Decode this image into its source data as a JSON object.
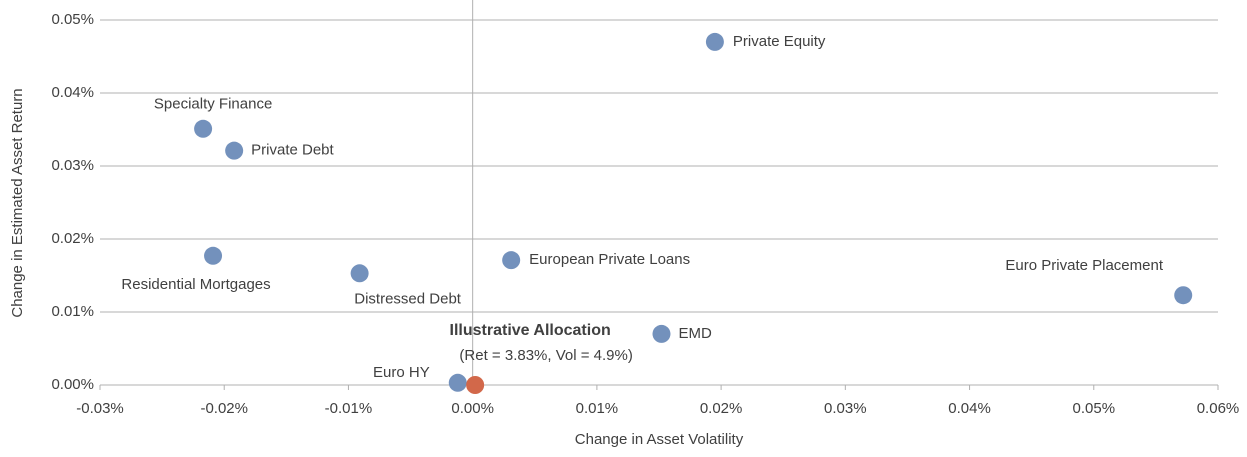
{
  "chart_data": {
    "type": "scatter",
    "xlabel": "Change in Asset Volatility",
    "ylabel": "Change in Estimated Asset Return",
    "point_labels": [
      "Private Equity",
      "Specialty Finance",
      "Private Debt",
      "Residential Mortgages",
      "Distressed Debt",
      "European Private Loans",
      "Euro Private Placement",
      "EMD",
      "Euro HY",
      "Illustrative Allocation"
    ],
    "x": [
      0.0195,
      -0.0217,
      -0.0192,
      -0.0209,
      -0.0091,
      0.0031,
      0.0572,
      0.0152,
      -0.0012,
      0.0002
    ],
    "values": [
      0.047,
      0.0351,
      0.0321,
      0.0177,
      0.0153,
      0.0171,
      0.0123,
      0.007,
      0.0003,
      0.0
    ],
    "colors": [
      "#7391bc",
      "#7391bc",
      "#7391bc",
      "#7391bc",
      "#7391bc",
      "#7391bc",
      "#7391bc",
      "#7391bc",
      "#7391bc",
      "#d2684a"
    ],
    "annotation": "(Ret = 3.83%, Vol = 4.9%)",
    "xlim": [
      -0.03,
      0.06
    ],
    "ylim": [
      0,
      0.05
    ],
    "xticks": [
      {
        "value": -0.03,
        "label": "-0.03%"
      },
      {
        "value": -0.02,
        "label": "-0.02%"
      },
      {
        "value": -0.01,
        "label": "-0.01%"
      },
      {
        "value": 0,
        "label": "0.00%"
      },
      {
        "value": 0.01,
        "label": "0.01%"
      },
      {
        "value": 0.02,
        "label": "0.02%"
      },
      {
        "value": 0.03,
        "label": "0.03%"
      },
      {
        "value": 0.04,
        "label": "0.04%"
      },
      {
        "value": 0.05,
        "label": "0.05%"
      },
      {
        "value": 0.06,
        "label": "0.06%"
      }
    ],
    "yticks": [
      {
        "value": 0,
        "label": "0.00%"
      },
      {
        "value": 0.01,
        "label": "0.01%"
      },
      {
        "value": 0.02,
        "label": "0.02%"
      },
      {
        "value": 0.03,
        "label": "0.03%"
      },
      {
        "value": 0.04,
        "label": "0.04%"
      },
      {
        "value": 0.05,
        "label": "0.05%"
      }
    ],
    "grid": true
  }
}
